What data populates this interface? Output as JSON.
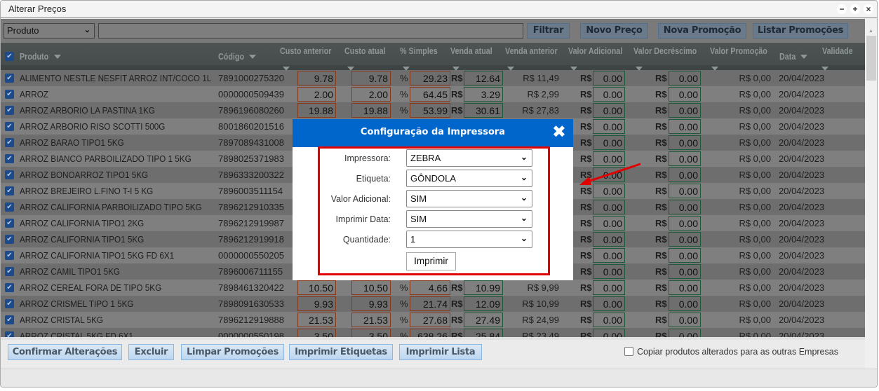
{
  "window": {
    "title": "Alterar Preços",
    "controls": [
      "−",
      "+",
      "×"
    ]
  },
  "toolbar": {
    "filter_field": "Produto",
    "search_value": "",
    "buttons": [
      "Filtrar",
      "Novo Preço",
      "Nova Promoção",
      "Listar Promoções"
    ]
  },
  "columns": [
    "Produto",
    "Código",
    "Custo anterior",
    "Custo atual",
    "% Simples",
    "Venda atual",
    "Venda anterior",
    "Valor Adicional",
    "Valor Decréscimo",
    "Valor Promoção",
    "Data",
    "Validade"
  ],
  "currency": "R$",
  "percent": "%",
  "rows": [
    {
      "produto": "ALIMENTO NESTLE NESFIT ARROZ INT/COCO 1L",
      "codigo": "7891000275320",
      "custo_anterior": "9.78",
      "custo_atual": "9.78",
      "simples": "29.23",
      "venda_atual": "12.64",
      "venda_anterior": "R$ 11,49",
      "adicional": "0.00",
      "decrescimo": "0.00",
      "promocao": "R$ 0,00",
      "data": "20/04/2023"
    },
    {
      "produto": "ARROZ",
      "codigo": "0000000509439",
      "custo_anterior": "2.00",
      "custo_atual": "2.00",
      "simples": "64.45",
      "venda_atual": "3.29",
      "venda_anterior": "R$ 2,99",
      "adicional": "0.00",
      "decrescimo": "0.00",
      "promocao": "R$ 0,00",
      "data": "20/04/2023"
    },
    {
      "produto": "ARROZ ARBORIO LA PASTINA 1KG",
      "codigo": "7896196080260",
      "custo_anterior": "19.88",
      "custo_atual": "19.88",
      "simples": "53.99",
      "venda_atual": "30.61",
      "venda_anterior": "R$ 27,83",
      "adicional": "0.00",
      "decrescimo": "0.00",
      "promocao": "R$ 0,00",
      "data": "20/04/2023"
    },
    {
      "produto": "ARROZ ARBORIO RISO SCOTTI 500G",
      "codigo": "8001860201516",
      "adicional": "0.00",
      "decrescimo": "0.00",
      "promocao": "R$ 0,00",
      "data": "20/04/2023"
    },
    {
      "produto": "ARROZ BARAO TIPO1 5KG",
      "codigo": "7897089431008",
      "adicional": "0.00",
      "decrescimo": "0.00",
      "promocao": "R$ 0,00",
      "data": "20/04/2023"
    },
    {
      "produto": "ARROZ BIANCO PARBOILIZADO TIPO 1 5KG",
      "codigo": "7898025371983",
      "adicional": "0.00",
      "decrescimo": "0.00",
      "promocao": "R$ 0,00",
      "data": "20/04/2023"
    },
    {
      "produto": "ARROZ BONOARROZ TIPO1 5KG",
      "codigo": "7896333200322",
      "adicional": "0.00",
      "decrescimo": "0.00",
      "promocao": "R$ 0,00",
      "data": "20/04/2023"
    },
    {
      "produto": "ARROZ BREJEIRO L.FINO T-I 5 KG",
      "codigo": "7896003511154",
      "adicional": "0.00",
      "decrescimo": "0.00",
      "promocao": "R$ 0,00",
      "data": "20/04/2023"
    },
    {
      "produto": "ARROZ CALIFORNIA PARBOILIZADO TIPO 5KG",
      "codigo": "7896212910335",
      "adicional": "0.00",
      "decrescimo": "0.00",
      "promocao": "R$ 0,00",
      "data": "20/04/2023"
    },
    {
      "produto": "ARROZ CALIFORNIA TIPO1 2KG",
      "codigo": "7896212919987",
      "adicional": "0.00",
      "decrescimo": "0.00",
      "promocao": "R$ 0,00",
      "data": "20/04/2023"
    },
    {
      "produto": "ARROZ CALIFORNIA TIPO1 5KG",
      "codigo": "7896212919918",
      "adicional": "0.00",
      "decrescimo": "0.00",
      "promocao": "R$ 0,00",
      "data": "20/04/2023"
    },
    {
      "produto": "ARROZ CALIFORNIA TIPO1 5KG FD 6X1",
      "codigo": "0000000550205",
      "adicional": "0.00",
      "decrescimo": "0.00",
      "promocao": "R$ 0,00",
      "data": "20/04/2023"
    },
    {
      "produto": "ARROZ CAMIL TIPO1 5KG",
      "codigo": "7896006711155",
      "adicional": "0.00",
      "decrescimo": "0.00",
      "promocao": "R$ 0,00",
      "data": "20/04/2023"
    },
    {
      "produto": "ARROZ CEREAL FORA DE TIPO 5KG",
      "codigo": "7898461320422",
      "custo_anterior": "10.50",
      "custo_atual": "10.50",
      "simples": "4.66",
      "venda_atual": "10.99",
      "venda_anterior": "R$ 9,99",
      "adicional": "0.00",
      "decrescimo": "0.00",
      "promocao": "R$ 0,00",
      "data": "20/04/2023"
    },
    {
      "produto": "ARROZ CRISMEL TIPO 1 5KG",
      "codigo": "7898091630533",
      "custo_anterior": "9.93",
      "custo_atual": "9.93",
      "simples": "21.74",
      "venda_atual": "12.09",
      "venda_anterior": "R$ 10,99",
      "adicional": "0.00",
      "decrescimo": "0.00",
      "promocao": "R$ 0,00",
      "data": "20/04/2023"
    },
    {
      "produto": "ARROZ CRISTAL 5KG",
      "codigo": "7896212919888",
      "custo_anterior": "21.53",
      "custo_atual": "21.53",
      "simples": "27.68",
      "venda_atual": "27.49",
      "venda_anterior": "R$ 24,99",
      "adicional": "0.00",
      "decrescimo": "0.00",
      "promocao": "R$ 0,00",
      "data": "20/04/2023"
    },
    {
      "produto": "ARROZ CRISTAL 5KG FD 6X1",
      "codigo": "0000000550198",
      "custo_anterior": "3.50",
      "custo_atual": "3.50",
      "simples": "638.26",
      "venda_atual": "25.84",
      "venda_anterior": "R$ 23,49",
      "adicional": "0.00",
      "decrescimo": "0.00",
      "promocao": "R$ 0,00",
      "data": "20/04/2023"
    }
  ],
  "footer": {
    "buttons": [
      "Confirmar Alterações",
      "Excluir",
      "Limpar Promoções",
      "Imprimir Etiquetas",
      "Imprimir Lista"
    ],
    "copy_checkbox_label": "Copiar produtos alterados para as outras Empresas",
    "copy_checked": false
  },
  "modal": {
    "title": "Configuração da Impressora",
    "close": "✖",
    "fields": [
      {
        "label": "Impressora:",
        "value": "ZEBRA"
      },
      {
        "label": "Etiqueta:",
        "value": "GÔNDOLA"
      },
      {
        "label": "Valor Adicional:",
        "value": "SIM"
      },
      {
        "label": "Imprimir Data:",
        "value": "SIM"
      },
      {
        "label": "Quantidade:",
        "value": "1"
      }
    ],
    "print_button": "Imprimir"
  },
  "colors": {
    "modal_header": "#0066cc",
    "highlight_border": "#e00000",
    "annotation_arrow": "#e00000"
  }
}
